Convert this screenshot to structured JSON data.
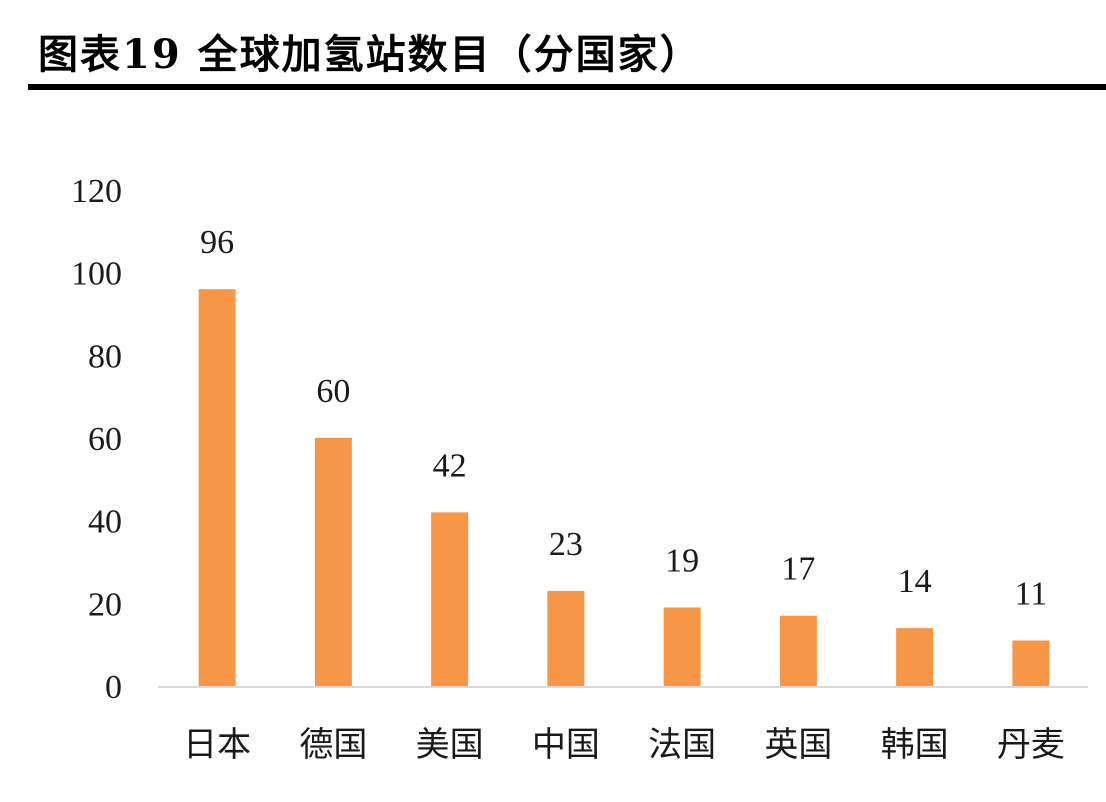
{
  "page": {
    "title": "图表19 全球加氢站数目（分国家）"
  },
  "chart_data": {
    "type": "bar",
    "categories": [
      "日本",
      "德国",
      "美国",
      "中国",
      "法国",
      "英国",
      "韩国",
      "丹麦"
    ],
    "values": [
      96,
      60,
      42,
      23,
      19,
      17,
      14,
      11
    ],
    "data_labels": [
      "96",
      "60",
      "42",
      "23",
      "19",
      "17",
      "14",
      "11"
    ],
    "ylim": [
      0,
      120
    ],
    "yticks": [
      0,
      20,
      40,
      60,
      80,
      100,
      120
    ],
    "ytick_labels": [
      "0",
      "20",
      "40",
      "60",
      "80",
      "100",
      "120"
    ],
    "grid": false,
    "legend": "none",
    "bar_color": "#F79646",
    "axis_color": "#D9D9D9"
  }
}
